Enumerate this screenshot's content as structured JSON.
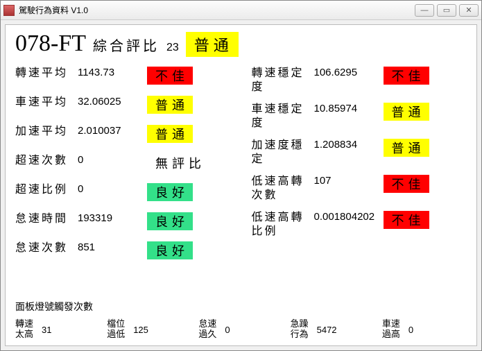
{
  "window": {
    "title": "駕駛行為資料 V1.0"
  },
  "header": {
    "id": "078-FT",
    "overall_label": "綜合評比",
    "overall_score": "23",
    "overall_badge": "普通",
    "overall_badge_color": "yellow"
  },
  "metrics_left": [
    {
      "label": "轉速平均",
      "value": "1143.73",
      "badge": "不佳",
      "color": "red"
    },
    {
      "label": "車速平均",
      "value": "32.06025",
      "badge": "普通",
      "color": "yellow"
    },
    {
      "label": "加速平均",
      "value": "2.010037",
      "badge": "普通",
      "color": "yellow"
    },
    {
      "label": "超速次數",
      "value": "0",
      "badge": "無評比",
      "color": "white"
    },
    {
      "label": "超速比例",
      "value": "0",
      "badge": "良好",
      "color": "green"
    },
    {
      "label": "怠速時間",
      "value": "193319",
      "badge": "良好",
      "color": "green"
    },
    {
      "label": "怠速次數",
      "value": "851",
      "badge": "良好",
      "color": "green"
    }
  ],
  "metrics_right": [
    {
      "label": "轉速穩定度",
      "value": "106.6295",
      "badge": "不佳",
      "color": "red"
    },
    {
      "label": "車速穩定度",
      "value": "10.85974",
      "badge": "普通",
      "color": "yellow"
    },
    {
      "label": "加速度穩定",
      "value": "1.208834",
      "badge": "普通",
      "color": "yellow"
    },
    {
      "label": "低速高轉\n次數",
      "value": "107",
      "badge": "不佳",
      "color": "red"
    },
    {
      "label": "低速高轉\n比例",
      "value": "0.001804202",
      "badge": "不佳",
      "color": "red"
    }
  ],
  "panel": {
    "title": "面板燈號觸發次數",
    "items": [
      {
        "label": "轉速\n太高",
        "value": "31"
      },
      {
        "label": "檔位\n過低",
        "value": "125"
      },
      {
        "label": "怠速\n過久",
        "value": "0"
      },
      {
        "label": "急躁\n行為",
        "value": "5472"
      },
      {
        "label": "車速\n過高",
        "value": "0"
      }
    ]
  },
  "colors": {
    "red": "#ff0000",
    "yellow": "#ffff00",
    "green": "#33e089",
    "white": "#ffffff"
  }
}
